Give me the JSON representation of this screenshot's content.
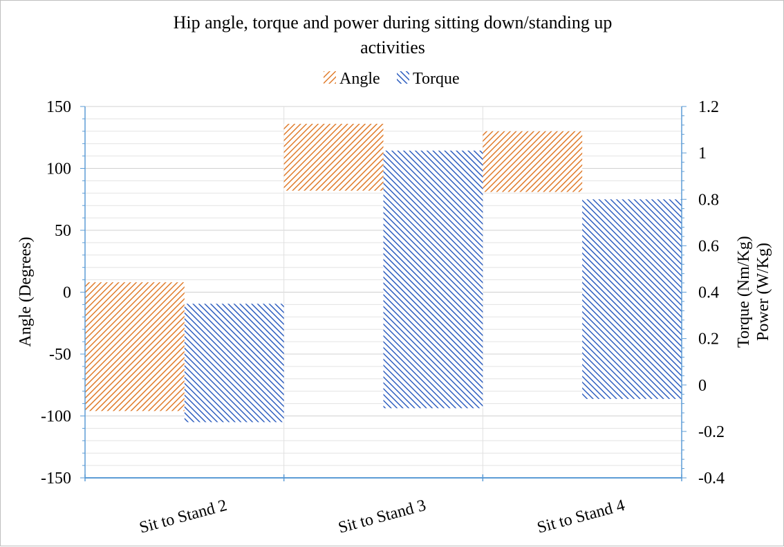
{
  "chart_data": {
    "type": "bar",
    "subtype": "floating-range-bar",
    "title_lines": [
      "Hip  angle, torque and power during  sitting down/standing up",
      "activities"
    ],
    "categories": [
      "Sit to Stand 2",
      "Sit to Stand 3",
      "Sit to Stand 4"
    ],
    "series": [
      {
        "name": "Angle",
        "axis": "left",
        "color": "#E07B2A",
        "pattern": "diagonal-up",
        "ranges": [
          [
            -96,
            8
          ],
          [
            82,
            136
          ],
          [
            81,
            130
          ]
        ]
      },
      {
        "name": "Torque",
        "axis": "right",
        "color": "#2F5FC0",
        "pattern": "diagonal-down",
        "ranges": [
          [
            -0.16,
            0.35
          ],
          [
            -0.1,
            1.01
          ],
          [
            -0.06,
            0.8
          ]
        ]
      }
    ],
    "left_axis": {
      "title": "Angle (Degrees)",
      "min": -150,
      "max": 150,
      "major": 50,
      "minor": 10,
      "tick_labels": [
        "150",
        "100",
        "50",
        "0",
        "-50",
        "-100",
        "-150"
      ]
    },
    "right_axis": {
      "title_lines": [
        "Torque (Nm/Kg)",
        "Power (W/Kg)"
      ],
      "min": -0.4,
      "max": 1.2,
      "major": 0.2,
      "minor": 0.04,
      "tick_labels": [
        "1.2",
        "1",
        "0.8",
        "0.6",
        "0.4",
        "0.2",
        "0",
        "-0.2",
        "-0.4"
      ]
    },
    "legend_position": "top",
    "gridlines": true,
    "axis_color": "#5B9BD5",
    "grid_color": "#E3E3E3"
  }
}
